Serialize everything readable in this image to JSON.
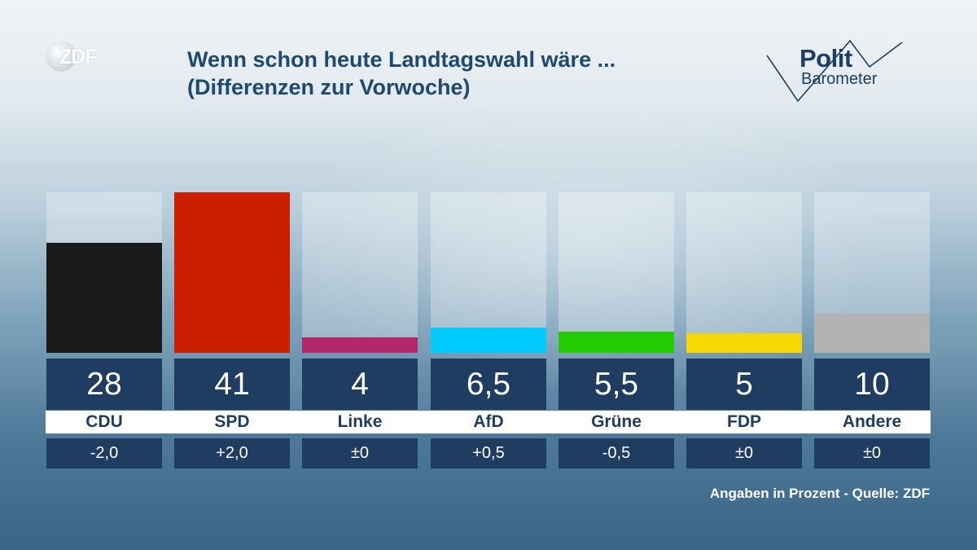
{
  "brand": {
    "logo_text": "ZDF"
  },
  "header": {
    "title_line1": "Wenn schon heute Landtagswahl wäre ...",
    "title_line2": "(Differenzen zur Vorwoche)"
  },
  "politbarometer": {
    "line1": "Polit",
    "line2": "Barometer"
  },
  "chart_data": {
    "type": "bar",
    "title": "Wenn schon heute Landtagswahl wäre ... (Differenzen zur Vorwoche)",
    "categories": [
      "CDU",
      "SPD",
      "Linke",
      "AfD",
      "Grüne",
      "FDP",
      "Andere"
    ],
    "values": [
      28,
      41,
      4,
      6.5,
      5.5,
      5,
      10
    ],
    "value_labels": [
      "28",
      "41",
      "4",
      "6,5",
      "5,5",
      "5",
      "10"
    ],
    "differences": [
      "-2,0",
      "+2,0",
      "±0",
      "+0,5",
      "-0,5",
      "±0",
      "±0"
    ],
    "colors": [
      "#1a1a1a",
      "#cc1e00",
      "#b5276b",
      "#00ccff",
      "#22cc00",
      "#f5d800",
      "#b3b3b3"
    ],
    "ylim": [
      0,
      41
    ],
    "xlabel": "",
    "ylabel": ""
  },
  "footer": {
    "source": "Angaben in Prozent - Quelle: ZDF"
  }
}
